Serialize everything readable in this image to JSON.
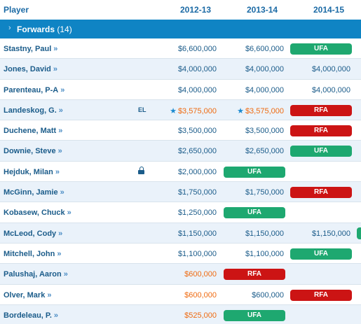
{
  "header": {
    "player": "Player",
    "col1": "2012-13",
    "col2": "2013-14",
    "col3": "2014-15"
  },
  "group": {
    "title": "Forwards",
    "count": "(14)"
  },
  "colors": {
    "ufa": "#1ea870",
    "rfa": "#cc1414",
    "accent": "#0f84c4",
    "entry_level": "#ef6a10"
  },
  "players": [
    {
      "name": "Stastny, Paul",
      "arrow": "»",
      "y1": "$6,600,000",
      "y2": "$6,600,000",
      "y3": "UFA"
    },
    {
      "name": "Jones, David",
      "arrow": "»",
      "y1": "$4,000,000",
      "y2": "$4,000,000",
      "y3": "$4,000,000"
    },
    {
      "name": "Parenteau, P-A",
      "arrow": "»",
      "y1": "$4,000,000",
      "y2": "$4,000,000",
      "y3": "$4,000,000"
    },
    {
      "name": "Landeskog, G.",
      "arrow": "»",
      "flag": "EL",
      "star": "★",
      "y1": "$3,575,000",
      "y2": "$3,575,000",
      "y3": "RFA"
    },
    {
      "name": "Duchene, Matt",
      "arrow": "»",
      "y1": "$3,500,000",
      "y2": "$3,500,000",
      "y3": "RFA"
    },
    {
      "name": "Downie, Steve",
      "arrow": "»",
      "y1": "$2,650,000",
      "y2": "$2,650,000",
      "y3": "UFA"
    },
    {
      "name": "Hejduk, Milan",
      "arrow": "»",
      "lock_icon": "lock-icon",
      "y1": "$2,000,000",
      "y2": "UFA"
    },
    {
      "name": "McGinn, Jamie",
      "arrow": "»",
      "y1": "$1,750,000",
      "y2": "$1,750,000",
      "y3": "RFA"
    },
    {
      "name": "Kobasew, Chuck",
      "arrow": "»",
      "y1": "$1,250,000",
      "y2": "UFA"
    },
    {
      "name": "McLeod, Cody",
      "arrow": "»",
      "y1": "$1,150,000",
      "y2": "$1,150,000",
      "y3": "$1,150,000"
    },
    {
      "name": "Mitchell, John",
      "arrow": "»",
      "y1": "$1,100,000",
      "y2": "$1,100,000",
      "y3": "UFA"
    },
    {
      "name": "Palushaj, Aaron",
      "arrow": "»",
      "y1": "$600,000",
      "y2": "RFA"
    },
    {
      "name": "Olver, Mark",
      "arrow": "»",
      "y1": "$600,000",
      "y2": "$600,000",
      "y3": "RFA"
    },
    {
      "name": "Bordeleau, P.",
      "arrow": "»",
      "y1": "$525,000",
      "y2": "UFA"
    }
  ]
}
